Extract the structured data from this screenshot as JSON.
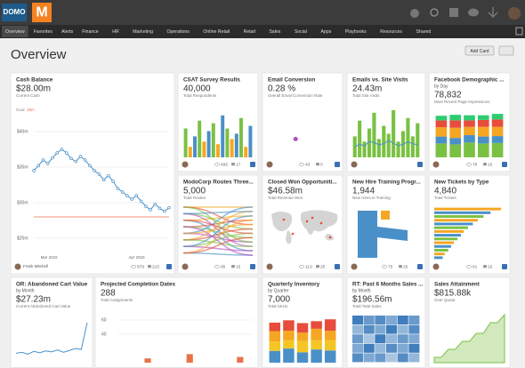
{
  "header": {
    "logo": "DOMO",
    "logo_mark": "M",
    "nav": [
      "Overview",
      "Favorites",
      "Alerts",
      "Finance",
      "HR",
      "Marketing",
      "Operations",
      "Online Retail",
      "Retail",
      "Sales",
      "Social",
      "Apps",
      "Playbooks",
      "Resources",
      "Shared"
    ]
  },
  "page_title": "Overview",
  "add_card": "Add Card",
  "cards": [
    {
      "title": "Cash Balance",
      "value": "$28.00m",
      "caption": "Current Cash",
      "owner": "Frank Mitchell",
      "views": 879,
      "comments": 215,
      "chart": {
        "type": "line",
        "color": "#4a90c8",
        "goal_text": "Goal",
        "goal_label": "28m",
        "goal": 28,
        "goal_color": "#e8734a",
        "values": [
          34.5,
          35.2,
          36,
          35.5,
          36.3,
          37,
          37.5,
          37,
          36.2,
          35.8,
          36.5,
          36,
          35.2,
          34.5,
          34,
          33.2,
          33.8,
          33,
          32,
          31.5,
          31,
          30.5,
          31,
          30.2,
          29.5,
          29,
          29.8,
          29.2,
          28.8,
          29.3
        ],
        "ylim": [
          23,
          42
        ],
        "yticks": [
          {
            "value": 25,
            "label": "$25m"
          },
          {
            "value": 30,
            "label": "$30m"
          },
          {
            "value": 35,
            "label": "$35m"
          },
          {
            "value": 40,
            "label": "$40m"
          }
        ],
        "x_labels": [
          "Mar 2015",
          "Apr 2015"
        ]
      }
    },
    {
      "title": "CSAT Survey Results",
      "value": "40,000",
      "caption": "Total Respondents",
      "views": 495,
      "comments": 17,
      "chart": {
        "type": "bars",
        "colors": [
          "#7ac143",
          "#f5a623",
          "#4a90c8"
        ],
        "ylim": [
          0,
          100
        ],
        "values": [
          55,
          20,
          40,
          70,
          30,
          50,
          65,
          25,
          80,
          55,
          35,
          45,
          75,
          20,
          60
        ]
      }
    },
    {
      "title": "Email Conversion",
      "value": "0.28 %",
      "caption": "Overall Email Conversion Rate",
      "views": 43,
      "comments": 0,
      "chart": {
        "type": "scatter",
        "color": "#b04fc0",
        "xlim": [
          0,
          1
        ],
        "ylim": [
          0,
          1
        ],
        "x": [
          0.4
        ],
        "values": [
          0.35
        ]
      }
    },
    {
      "title": "Emails vs. Site Visits",
      "value": "24.43m",
      "caption": "Total Site Visits",
      "chart": {
        "type": "bars",
        "colors": [
          "#7ac143"
        ],
        "ylim": [
          0,
          100
        ],
        "values": [
          40,
          70,
          30,
          55,
          85,
          35,
          60,
          45,
          90,
          30,
          50,
          75,
          40,
          65
        ],
        "line": {
          "color": "#4a90c8",
          "values": [
            20,
            25,
            22,
            30,
            28,
            24,
            26,
            32,
            27,
            22,
            25,
            30,
            26,
            24
          ]
        }
      }
    },
    {
      "title": "Facebook Demographic ...",
      "subtitle": "by Day",
      "value": "78,832",
      "caption": "Most Recent Page Impressions",
      "views": 76,
      "comments": 15,
      "chart": {
        "type": "stacked",
        "ylim": [
          0,
          100
        ],
        "series": [
          {
            "color": "#7ac143",
            "values": [
              30,
              28,
              32,
              30,
              31
            ]
          },
          {
            "color": "#4a90c8",
            "values": [
              15,
              14,
              16,
              15,
              15
            ]
          },
          {
            "color": "#f5a623",
            "values": [
              20,
              22,
              18,
              21,
              20
            ]
          },
          {
            "color": "#e74c3c",
            "values": [
              15,
              16,
              14,
              15,
              16
            ]
          },
          {
            "color": "#2ecc71",
            "values": [
              10,
              12,
              11,
              10,
              12
            ]
          }
        ]
      }
    },
    {
      "title": "ModoCorp Routes Three...",
      "value": "5,000",
      "caption": "Total Routes",
      "views": 95,
      "comments": 15
    },
    {
      "title": "Closed Won Opportuniti...",
      "value": "$46.58m",
      "caption": "Total Revenue Won",
      "views": 113,
      "comments": 25
    },
    {
      "title": "New Hire Training Progr...",
      "value": "1,944",
      "caption": "New Hires in Training",
      "views": 75,
      "comments": 25
    },
    {
      "title": "New Tickets by Type",
      "value": "4,840",
      "caption": "Total Tickets",
      "views": 81,
      "comments": 15,
      "chart": {
        "type": "hbars",
        "colors": [
          "#f5a623",
          "#4a90c8",
          "#7ac143"
        ],
        "xlim": [
          0,
          100
        ],
        "values": [
          95,
          80,
          70,
          62,
          55,
          48,
          42,
          38,
          33,
          28,
          24,
          20,
          15,
          12
        ]
      }
    },
    {
      "title": "OR: Abandoned Cart Value",
      "subtitle": "by Month",
      "value": "$27.23m",
      "caption": "Current Abandoned Cart Value",
      "chart": {
        "type": "line",
        "color": "#4a90c8",
        "ylim": [
          0,
          100
        ],
        "values": [
          20,
          22,
          18,
          24,
          21,
          25,
          23,
          27,
          22,
          26,
          30,
          28,
          85
        ]
      }
    },
    {
      "title": "Projected Completion Dates",
      "value": "288",
      "caption": "Total Assignments",
      "chart": {
        "type": "bars",
        "colors": [
          "#e8734a"
        ],
        "ylim": [
          0,
          75
        ],
        "yticks": [
          40,
          60
        ],
        "values": [
          0,
          0,
          0,
          6,
          0,
          0,
          0,
          0,
          12,
          0,
          0,
          0,
          0,
          0,
          8,
          0
        ]
      }
    },
    {
      "title": "Quarterly Inventory",
      "subtitle": "by Quarter",
      "value": "7,000",
      "caption": "Total SKUs",
      "chart": {
        "type": "stacked",
        "ylim": [
          0,
          100
        ],
        "series": [
          {
            "color": "#4a90c8",
            "values": [
              25,
              30,
              22,
              28,
              26
            ]
          },
          {
            "color": "#f5c623",
            "values": [
              20,
              18,
              24,
              20,
              22
            ]
          },
          {
            "color": "#f5a623",
            "values": [
              22,
              20,
              18,
              24,
              20
            ]
          },
          {
            "color": "#e74c3c",
            "values": [
              18,
              22,
              20,
              16,
              24
            ]
          }
        ]
      }
    },
    {
      "title": "RT: Past 6 Months Sales ...",
      "subtitle": "by Month",
      "value": "$196.56m",
      "caption": "Total Total Sales",
      "chart": {
        "type": "heatmap",
        "color": "#2a6fb5",
        "rows": [
          [
            0.9,
            0.7,
            0.8,
            0.6,
            0.9,
            0.7
          ],
          [
            0.5,
            0.8,
            0.6,
            0.9,
            0.5,
            0.8
          ],
          [
            0.7,
            0.4,
            0.9,
            0.5,
            0.7,
            0.6
          ],
          [
            0.6,
            0.9,
            0.5,
            0.8,
            0.6,
            0.9
          ],
          [
            0.8,
            0.6,
            0.7,
            0.4,
            0.8,
            0.5
          ]
        ]
      }
    },
    {
      "title": "Sales Attainment",
      "value": "$815.88k",
      "caption": "Over Quota",
      "chart": {
        "type": "area",
        "color": "#7ac143",
        "ylim": [
          0,
          100
        ],
        "values": [
          10,
          10,
          25,
          25,
          40,
          40,
          55,
          55,
          75,
          75,
          90
        ]
      }
    }
  ]
}
